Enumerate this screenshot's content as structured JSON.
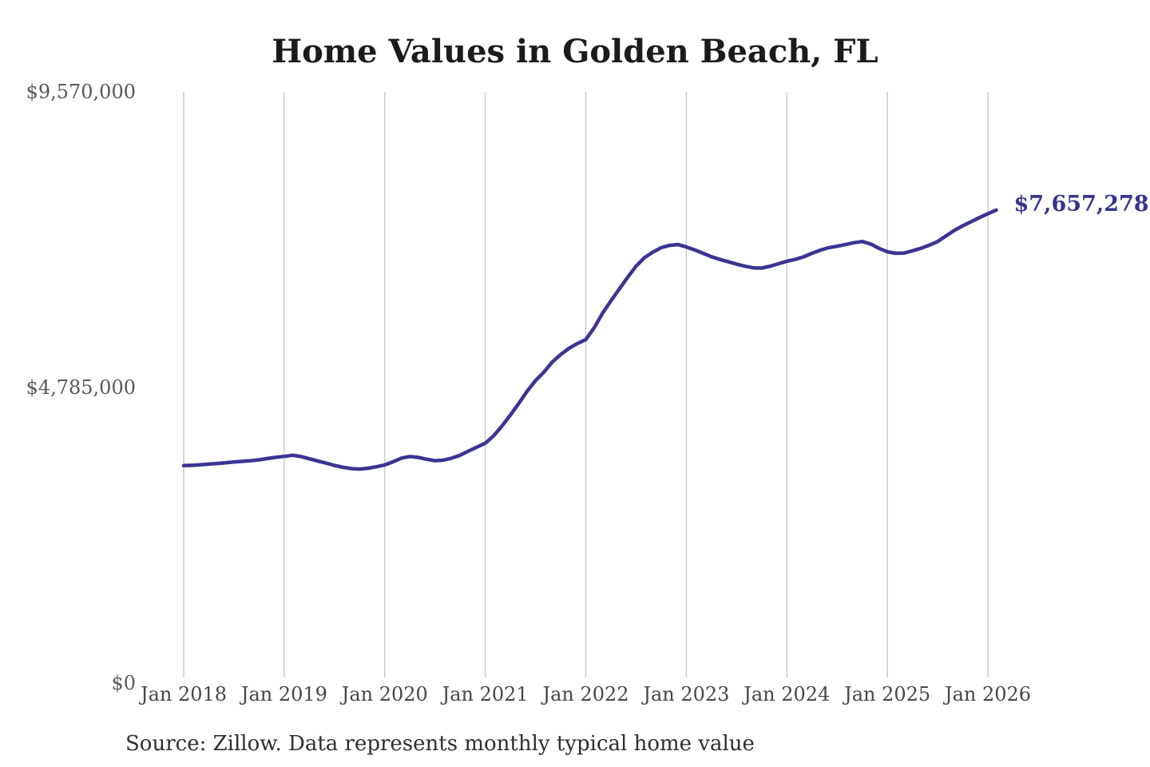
{
  "title": "Home Values in Golden Beach, FL",
  "source_note": "Source: Zillow. Data represents monthly typical home value",
  "end_label": "$7,657,278",
  "colors": {
    "background": "#ffffff",
    "title": "#1b1b1b",
    "line": "#3b3494",
    "end_label": "#37338f",
    "grid": "#cccccc",
    "y_tick_label": "#585858",
    "x_tick_label": "#474747",
    "source": "#2e2e2e"
  },
  "chart_data": {
    "type": "line",
    "title": "Home Values in Golden Beach, FL",
    "series_name": "Monthly typical home value (Zillow)",
    "x_start": "Jan 2018",
    "x_end": "Feb 2026",
    "x_tick_labels": [
      "Jan 2018",
      "Jan 2019",
      "Jan 2020",
      "Jan 2021",
      "Jan 2022",
      "Jan 2023",
      "Jan 2024",
      "Jan 2025",
      "Jan 2026"
    ],
    "months_per_x_tick": 12,
    "y_ticks": [
      {
        "label": "$0",
        "value": 0
      },
      {
        "label": "$4,785,000",
        "value": 4785000
      },
      {
        "label": "$9,570,000",
        "value": 9570000
      }
    ],
    "ylim": [
      0,
      9570000
    ],
    "grid": "vertical-only",
    "legend": "none",
    "latest_value": 7657278,
    "latest_value_label": "$7,657,278",
    "monthly_values": [
      3520000,
      3525000,
      3535000,
      3545000,
      3555000,
      3565000,
      3580000,
      3590000,
      3600000,
      3615000,
      3635000,
      3655000,
      3670000,
      3688000,
      3668000,
      3632000,
      3596000,
      3560000,
      3524000,
      3494000,
      3472000,
      3465000,
      3478000,
      3502000,
      3532000,
      3582000,
      3642000,
      3668000,
      3654000,
      3624000,
      3600000,
      3610000,
      3642000,
      3690000,
      3756000,
      3820000,
      3882000,
      4002000,
      4162000,
      4340000,
      4528000,
      4726000,
      4898000,
      5034000,
      5196000,
      5318000,
      5420000,
      5498000,
      5560000,
      5752000,
      5988000,
      6188000,
      6380000,
      6568000,
      6748000,
      6886000,
      6976000,
      7048000,
      7086000,
      7098000,
      7060000,
      7012000,
      6958000,
      6902000,
      6858000,
      6820000,
      6782000,
      6748000,
      6722000,
      6718000,
      6748000,
      6788000,
      6828000,
      6858000,
      6900000,
      6958000,
      7008000,
      7048000,
      7072000,
      7098000,
      7128000,
      7148000,
      7108000,
      7038000,
      6982000,
      6958000,
      6962000,
      6998000,
      7038000,
      7088000,
      7148000,
      7238000,
      7328000,
      7402000,
      7468000,
      7536000,
      7598000,
      7657278
    ]
  }
}
